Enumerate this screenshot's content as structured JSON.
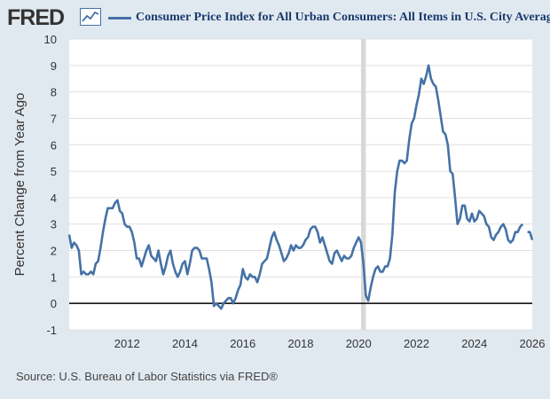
{
  "header": {
    "logo": "FRED",
    "logo_icon": "line-chart-icon",
    "series_title": "Consumer Price Index for All Urban Consumers: All Items in U.S. City Average"
  },
  "source": "Source: U.S. Bureau of Labor Statistics via FRED®",
  "colors": {
    "background": "#e1e9f0",
    "plot": "#ffffff",
    "series": "#4572a7",
    "gridline": "#e0e0e0",
    "recession": "#d8d8d8",
    "zero_line": "#000000"
  },
  "chart_data": {
    "type": "line",
    "ylabel": "Percent Change from Year Ago",
    "xlim": [
      "2010-01",
      "2026-01"
    ],
    "ylim": [
      -1,
      10
    ],
    "x_ticks": [
      "2012",
      "2014",
      "2016",
      "2018",
      "2020",
      "2022",
      "2024",
      "2026"
    ],
    "y_ticks": [
      "-1",
      "0",
      "1",
      "2",
      "3",
      "4",
      "5",
      "6",
      "7",
      "8",
      "9",
      "10"
    ],
    "grid": true,
    "zero_line": 0,
    "recession_shading": [
      [
        "2020-02",
        "2020-04"
      ]
    ],
    "series": [
      {
        "name": "Consumer Price Index for All Urban Consumers: All Items in U.S. City Average",
        "points": [
          [
            "2010-01",
            2.6
          ],
          [
            "2010-02",
            2.1
          ],
          [
            "2010-03",
            2.3
          ],
          [
            "2010-04",
            2.2
          ],
          [
            "2010-05",
            2.0
          ],
          [
            "2010-06",
            1.1
          ],
          [
            "2010-07",
            1.2
          ],
          [
            "2010-08",
            1.1
          ],
          [
            "2010-09",
            1.1
          ],
          [
            "2010-10",
            1.2
          ],
          [
            "2010-11",
            1.1
          ],
          [
            "2010-12",
            1.5
          ],
          [
            "2011-01",
            1.6
          ],
          [
            "2011-02",
            2.1
          ],
          [
            "2011-03",
            2.7
          ],
          [
            "2011-04",
            3.2
          ],
          [
            "2011-05",
            3.6
          ],
          [
            "2011-06",
            3.6
          ],
          [
            "2011-07",
            3.6
          ],
          [
            "2011-08",
            3.8
          ],
          [
            "2011-09",
            3.9
          ],
          [
            "2011-10",
            3.5
          ],
          [
            "2011-11",
            3.4
          ],
          [
            "2011-12",
            3.0
          ],
          [
            "2012-01",
            2.9
          ],
          [
            "2012-02",
            2.9
          ],
          [
            "2012-03",
            2.7
          ],
          [
            "2012-04",
            2.3
          ],
          [
            "2012-05",
            1.7
          ],
          [
            "2012-06",
            1.7
          ],
          [
            "2012-07",
            1.4
          ],
          [
            "2012-08",
            1.7
          ],
          [
            "2012-09",
            2.0
          ],
          [
            "2012-10",
            2.2
          ],
          [
            "2012-11",
            1.8
          ],
          [
            "2012-12",
            1.7
          ],
          [
            "2013-01",
            1.6
          ],
          [
            "2013-02",
            2.0
          ],
          [
            "2013-03",
            1.5
          ],
          [
            "2013-04",
            1.1
          ],
          [
            "2013-05",
            1.4
          ],
          [
            "2013-06",
            1.8
          ],
          [
            "2013-07",
            2.0
          ],
          [
            "2013-08",
            1.5
          ],
          [
            "2013-09",
            1.2
          ],
          [
            "2013-10",
            1.0
          ],
          [
            "2013-11",
            1.2
          ],
          [
            "2013-12",
            1.5
          ],
          [
            "2014-01",
            1.6
          ],
          [
            "2014-02",
            1.1
          ],
          [
            "2014-03",
            1.5
          ],
          [
            "2014-04",
            2.0
          ],
          [
            "2014-05",
            2.1
          ],
          [
            "2014-06",
            2.1
          ],
          [
            "2014-07",
            2.0
          ],
          [
            "2014-08",
            1.7
          ],
          [
            "2014-09",
            1.7
          ],
          [
            "2014-10",
            1.7
          ],
          [
            "2014-11",
            1.3
          ],
          [
            "2014-12",
            0.8
          ],
          [
            "2015-01",
            -0.1
          ],
          [
            "2015-02",
            0.0
          ],
          [
            "2015-03",
            -0.1
          ],
          [
            "2015-04",
            -0.2
          ],
          [
            "2015-05",
            0.0
          ],
          [
            "2015-06",
            0.1
          ],
          [
            "2015-07",
            0.2
          ],
          [
            "2015-08",
            0.2
          ],
          [
            "2015-09",
            0.0
          ],
          [
            "2015-10",
            0.2
          ],
          [
            "2015-11",
            0.5
          ],
          [
            "2015-12",
            0.7
          ],
          [
            "2016-01",
            1.3
          ],
          [
            "2016-02",
            1.0
          ],
          [
            "2016-03",
            0.9
          ],
          [
            "2016-04",
            1.1
          ],
          [
            "2016-05",
            1.0
          ],
          [
            "2016-06",
            1.0
          ],
          [
            "2016-07",
            0.8
          ],
          [
            "2016-08",
            1.1
          ],
          [
            "2016-09",
            1.5
          ],
          [
            "2016-10",
            1.6
          ],
          [
            "2016-11",
            1.7
          ],
          [
            "2016-12",
            2.1
          ],
          [
            "2017-01",
            2.5
          ],
          [
            "2017-02",
            2.7
          ],
          [
            "2017-03",
            2.4
          ],
          [
            "2017-04",
            2.2
          ],
          [
            "2017-05",
            1.9
          ],
          [
            "2017-06",
            1.6
          ],
          [
            "2017-07",
            1.7
          ],
          [
            "2017-08",
            1.9
          ],
          [
            "2017-09",
            2.2
          ],
          [
            "2017-10",
            2.0
          ],
          [
            "2017-11",
            2.2
          ],
          [
            "2017-12",
            2.1
          ],
          [
            "2018-01",
            2.1
          ],
          [
            "2018-02",
            2.2
          ],
          [
            "2018-03",
            2.4
          ],
          [
            "2018-04",
            2.5
          ],
          [
            "2018-05",
            2.8
          ],
          [
            "2018-06",
            2.9
          ],
          [
            "2018-07",
            2.9
          ],
          [
            "2018-08",
            2.7
          ],
          [
            "2018-09",
            2.3
          ],
          [
            "2018-10",
            2.5
          ],
          [
            "2018-11",
            2.2
          ],
          [
            "2018-12",
            1.9
          ],
          [
            "2019-01",
            1.6
          ],
          [
            "2019-02",
            1.5
          ],
          [
            "2019-03",
            1.9
          ],
          [
            "2019-04",
            2.0
          ],
          [
            "2019-05",
            1.8
          ],
          [
            "2019-06",
            1.6
          ],
          [
            "2019-07",
            1.8
          ],
          [
            "2019-08",
            1.7
          ],
          [
            "2019-09",
            1.7
          ],
          [
            "2019-10",
            1.8
          ],
          [
            "2019-11",
            2.1
          ],
          [
            "2019-12",
            2.3
          ],
          [
            "2020-01",
            2.5
          ],
          [
            "2020-02",
            2.3
          ],
          [
            "2020-03",
            1.5
          ],
          [
            "2020-04",
            0.3
          ],
          [
            "2020-05",
            0.1
          ],
          [
            "2020-06",
            0.6
          ],
          [
            "2020-07",
            1.0
          ],
          [
            "2020-08",
            1.3
          ],
          [
            "2020-09",
            1.4
          ],
          [
            "2020-10",
            1.2
          ],
          [
            "2020-11",
            1.2
          ],
          [
            "2020-12",
            1.4
          ],
          [
            "2021-01",
            1.4
          ],
          [
            "2021-02",
            1.7
          ],
          [
            "2021-03",
            2.6
          ],
          [
            "2021-04",
            4.2
          ],
          [
            "2021-05",
            5.0
          ],
          [
            "2021-06",
            5.4
          ],
          [
            "2021-07",
            5.4
          ],
          [
            "2021-08",
            5.3
          ],
          [
            "2021-09",
            5.4
          ],
          [
            "2021-10",
            6.2
          ],
          [
            "2021-11",
            6.8
          ],
          [
            "2021-12",
            7.0
          ],
          [
            "2022-01",
            7.5
          ],
          [
            "2022-02",
            7.9
          ],
          [
            "2022-03",
            8.5
          ],
          [
            "2022-04",
            8.3
          ],
          [
            "2022-05",
            8.6
          ],
          [
            "2022-06",
            9.0
          ],
          [
            "2022-07",
            8.5
          ],
          [
            "2022-08",
            8.3
          ],
          [
            "2022-09",
            8.2
          ],
          [
            "2022-10",
            7.7
          ],
          [
            "2022-11",
            7.1
          ],
          [
            "2022-12",
            6.5
          ],
          [
            "2023-01",
            6.4
          ],
          [
            "2023-02",
            6.0
          ],
          [
            "2023-03",
            5.0
          ],
          [
            "2023-04",
            4.9
          ],
          [
            "2023-05",
            4.0
          ],
          [
            "2023-06",
            3.0
          ],
          [
            "2023-07",
            3.2
          ],
          [
            "2023-08",
            3.7
          ],
          [
            "2023-09",
            3.7
          ],
          [
            "2023-10",
            3.2
          ],
          [
            "2023-11",
            3.1
          ],
          [
            "2023-12",
            3.4
          ],
          [
            "2024-01",
            3.1
          ],
          [
            "2024-02",
            3.2
          ],
          [
            "2024-03",
            3.5
          ],
          [
            "2024-04",
            3.4
          ],
          [
            "2024-05",
            3.3
          ],
          [
            "2024-06",
            3.0
          ],
          [
            "2024-07",
            2.9
          ],
          [
            "2024-08",
            2.5
          ],
          [
            "2024-09",
            2.4
          ],
          [
            "2024-10",
            2.6
          ],
          [
            "2024-11",
            2.7
          ],
          [
            "2024-12",
            2.9
          ],
          [
            "2025-01",
            3.0
          ],
          [
            "2025-02",
            2.8
          ],
          [
            "2025-03",
            2.4
          ],
          [
            "2025-04",
            2.3
          ],
          [
            "2025-05",
            2.4
          ],
          [
            "2025-06",
            2.7
          ],
          [
            "2025-07",
            2.7
          ],
          [
            "2025-08",
            2.9
          ],
          [
            "2025-09",
            3.0
          ],
          [
            "2025-10",
            ""
          ],
          [
            "2025-11",
            2.7
          ],
          [
            "2025-12",
            2.7
          ],
          [
            "2026-01",
            2.4
          ]
        ]
      }
    ]
  }
}
